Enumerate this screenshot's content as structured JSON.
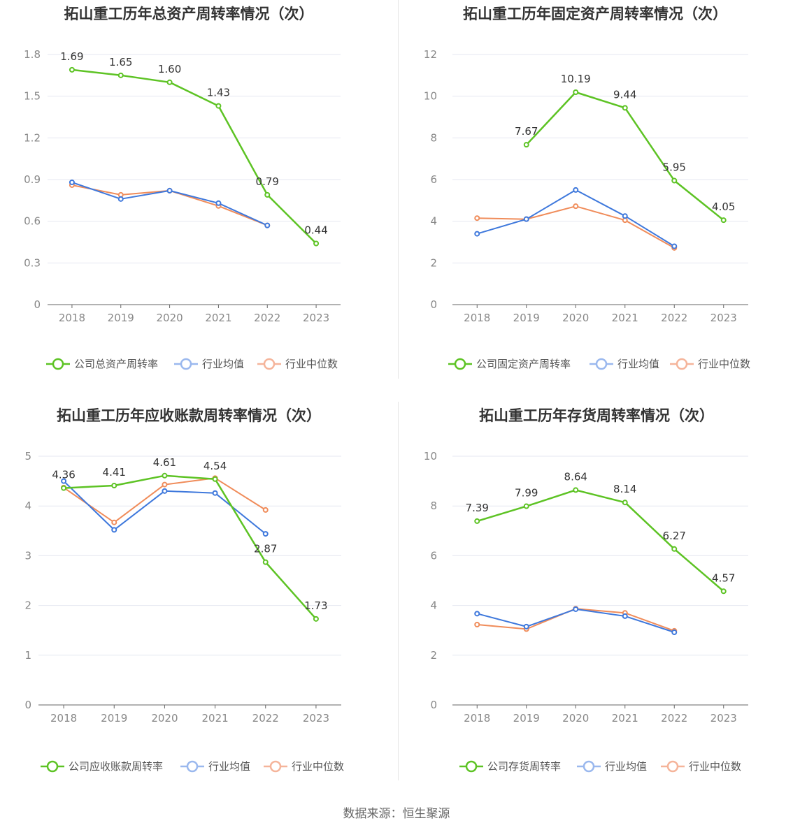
{
  "source": "数据来源：恒生聚源",
  "colors": {
    "company": "#5dc324",
    "industry_avg": "#3e78dc",
    "industry_median": "#f08c5a",
    "legend_avg": "#9ab8ee",
    "legend_median": "#f5b49a",
    "grid": "#e4e7f0",
    "axis": "#666666"
  },
  "chart_data": [
    {
      "type": "line",
      "title": "拓山重工历年总资产周转率情况（次）",
      "categories": [
        "2018",
        "2019",
        "2020",
        "2021",
        "2022",
        "2023"
      ],
      "yticks": [
        "0",
        "0.3",
        "0.6",
        "0.9",
        "1.2",
        "1.5",
        "1.8"
      ],
      "ylim": [
        0,
        1.8
      ],
      "series": [
        {
          "name": "公司总资产周转率",
          "values": [
            1.69,
            1.65,
            1.6,
            1.43,
            0.79,
            0.44
          ],
          "labels": [
            "1.69",
            "1.65",
            "1.60",
            "1.43",
            "0.79",
            "0.44"
          ]
        },
        {
          "name": "行业均值",
          "values": [
            0.88,
            0.76,
            0.82,
            0.73,
            0.57,
            null
          ]
        },
        {
          "name": "行业中位数",
          "values": [
            0.86,
            0.79,
            0.82,
            0.71,
            0.57,
            null
          ]
        }
      ]
    },
    {
      "type": "line",
      "title": "拓山重工历年固定资产周转率情况（次）",
      "categories": [
        "2018",
        "2019",
        "2020",
        "2021",
        "2022",
        "2023"
      ],
      "yticks": [
        "0",
        "2",
        "4",
        "6",
        "8",
        "10",
        "12"
      ],
      "ylim": [
        0,
        12
      ],
      "series": [
        {
          "name": "公司固定资产周转率",
          "values": [
            null,
            7.67,
            10.19,
            9.44,
            5.95,
            4.05
          ],
          "labels": [
            "",
            "7.67",
            "10.19",
            "9.44",
            "5.95",
            "4.05"
          ]
        },
        {
          "name": "行业均值",
          "values": [
            3.4,
            4.1,
            5.5,
            4.25,
            2.8,
            null
          ]
        },
        {
          "name": "行业中位数",
          "values": [
            4.15,
            4.1,
            4.72,
            4.05,
            2.72,
            null
          ]
        }
      ]
    },
    {
      "type": "line",
      "title": "拓山重工历年应收账款周转率情况（次）",
      "categories": [
        "2018",
        "2019",
        "2020",
        "2021",
        "2022",
        "2023"
      ],
      "yticks": [
        "0",
        "1",
        "2",
        "3",
        "4",
        "5"
      ],
      "ylim": [
        0,
        5
      ],
      "series": [
        {
          "name": "公司应收账款周转率",
          "values": [
            4.36,
            4.41,
            4.61,
            4.54,
            2.87,
            1.73
          ],
          "labels": [
            "4.36",
            "4.41",
            "4.61",
            "4.54",
            "2.87",
            "1.73"
          ]
        },
        {
          "name": "行业均值",
          "values": [
            4.5,
            3.52,
            4.3,
            4.26,
            3.44,
            null
          ]
        },
        {
          "name": "行业中位数",
          "values": [
            4.37,
            3.67,
            4.43,
            4.56,
            3.92,
            null
          ]
        }
      ]
    },
    {
      "type": "line",
      "title": "拓山重工历年存货周转率情况（次）",
      "categories": [
        "2018",
        "2019",
        "2020",
        "2021",
        "2022",
        "2023"
      ],
      "yticks": [
        "0",
        "2",
        "4",
        "6",
        "8",
        "10"
      ],
      "ylim": [
        0,
        10
      ],
      "series": [
        {
          "name": "公司存货周转率",
          "values": [
            7.39,
            7.99,
            8.64,
            8.14,
            6.27,
            4.57
          ],
          "labels": [
            "7.39",
            "7.99",
            "8.64",
            "8.14",
            "6.27",
            "4.57"
          ]
        },
        {
          "name": "行业均值",
          "values": [
            3.67,
            3.15,
            3.85,
            3.57,
            2.92,
            null
          ]
        },
        {
          "name": "行业中位数",
          "values": [
            3.23,
            3.05,
            3.87,
            3.7,
            2.98,
            null
          ]
        }
      ]
    }
  ]
}
